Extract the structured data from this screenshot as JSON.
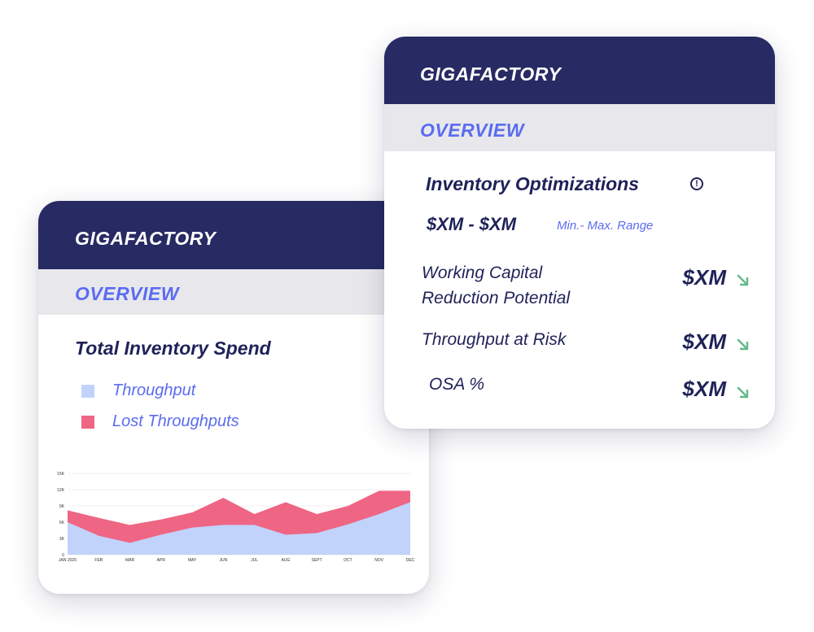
{
  "back_card": {
    "header": "GIGAFACTORY",
    "subheader": "OVERVIEW",
    "title": "Total Inventory Spend",
    "legend": [
      {
        "label": "Throughput",
        "color": "#c1d3fb"
      },
      {
        "label": "Lost Throughputs",
        "color": "#ef6584"
      }
    ]
  },
  "front_card": {
    "header": "GIGAFACTORY",
    "subheader": "OVERVIEW",
    "title": "Inventory Optimizations",
    "info_icon": "!",
    "range_value": "$XM - $XM",
    "range_label": "Min.- Max. Range",
    "metrics": [
      {
        "label_line1": "Working Capital",
        "label_line2": "Reduction Potential",
        "value": "$XM",
        "trend_icon": "arrow-down-right-icon"
      },
      {
        "label_line1": "Throughput at Risk",
        "value": "$XM",
        "trend_icon": "arrow-down-right-icon"
      },
      {
        "label_line1": "OSA %",
        "value": "$XM",
        "trend_icon": "arrow-down-right-icon"
      }
    ]
  },
  "colors": {
    "header_bg": "#272a63",
    "accent": "#5b6cf0",
    "subheader_bg": "#e8e8ec",
    "trend_arrow": "#63b98a"
  },
  "chart_data": {
    "type": "area",
    "x": [
      "JAN 2020",
      "FEB",
      "MAR",
      "APR",
      "MAY",
      "JUN",
      "JUL",
      "AUG",
      "SEPT",
      "OCT",
      "NOV",
      "DEC"
    ],
    "y_ticks": [
      "0",
      "3K",
      "6K",
      "9K",
      "12K",
      "15K"
    ],
    "ylim": [
      0,
      15000
    ],
    "grid": true,
    "series": [
      {
        "name": "Throughput",
        "color": "#c1d3fb",
        "values": [
          6000,
          3500,
          2200,
          3700,
          5000,
          5500,
          5500,
          3700,
          4000,
          5600,
          7500,
          9700
        ]
      },
      {
        "name": "Lost Throughputs",
        "color": "#ef6584",
        "values": [
          8200,
          6800,
          5500,
          6500,
          7800,
          10500,
          7500,
          9700,
          7500,
          9000,
          11800,
          11800
        ]
      }
    ]
  }
}
